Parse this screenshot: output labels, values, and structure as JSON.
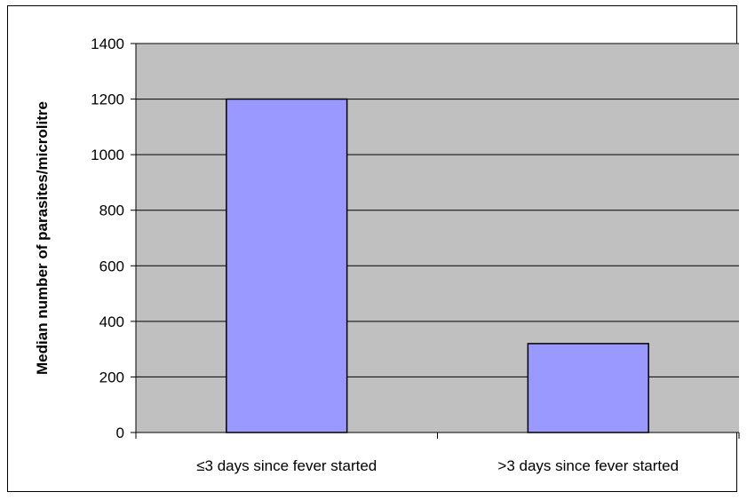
{
  "chart_data": {
    "type": "bar",
    "categories": [
      "≤3 days since fever started",
      ">3 days since fever started"
    ],
    "values": [
      1200,
      320
    ],
    "title": "",
    "xlabel": "",
    "ylabel": "Median number of parasites/microlitre",
    "ylim": [
      0,
      1400
    ],
    "yticks": [
      0,
      200,
      400,
      600,
      800,
      1000,
      1200,
      1400
    ],
    "grid": true,
    "legend": "none",
    "colors": {
      "plot_background": "#c0c0c0",
      "bar_fill": "#9999ff",
      "bar_stroke": "#000000",
      "gridline": "#000000"
    }
  }
}
